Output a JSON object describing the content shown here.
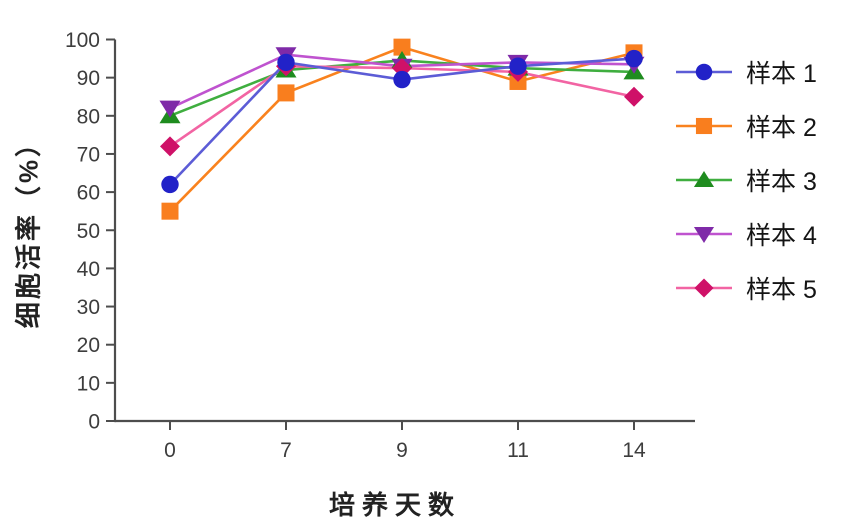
{
  "figure": {
    "background": "#ffffff"
  },
  "chart_data": {
    "type": "line",
    "title": "",
    "xlabel": "培养天数",
    "ylabel": "细胞活率（%）",
    "x_categories": [
      "0",
      "7",
      "9",
      "11",
      "14"
    ],
    "yticks": [
      0,
      10,
      20,
      30,
      40,
      50,
      60,
      70,
      80,
      90,
      100
    ],
    "ylim": [
      0,
      100
    ],
    "grid": false,
    "legend_position": "right",
    "axis_color": "#4d4d4d",
    "text_color": "#3d3d3d",
    "series": [
      {
        "name": "样本 1",
        "marker": "circle",
        "marker_color": "#2222c8",
        "line_color": "#5c5cd6",
        "values": [
          62,
          94,
          89.5,
          93,
          95
        ]
      },
      {
        "name": "样本 2",
        "marker": "square",
        "marker_color": "#f97e1e",
        "line_color": "#f9821e",
        "values": [
          55,
          86,
          98,
          89,
          96.5
        ]
      },
      {
        "name": "样本 3",
        "marker": "triangle-up",
        "marker_color": "#1f8c1f",
        "line_color": "#3fae3f",
        "values": [
          80,
          92,
          94.5,
          92.5,
          91.5
        ]
      },
      {
        "name": "样本 4",
        "marker": "triangle-down",
        "marker_color": "#7f2aa8",
        "line_color": "#bf53cf",
        "values": [
          82,
          96,
          93,
          94,
          93.5
        ]
      },
      {
        "name": "样本 5",
        "marker": "diamond",
        "marker_color": "#cf1168",
        "line_color": "#f264a3",
        "values": [
          72,
          93,
          92.5,
          91.5,
          85
        ]
      }
    ]
  }
}
